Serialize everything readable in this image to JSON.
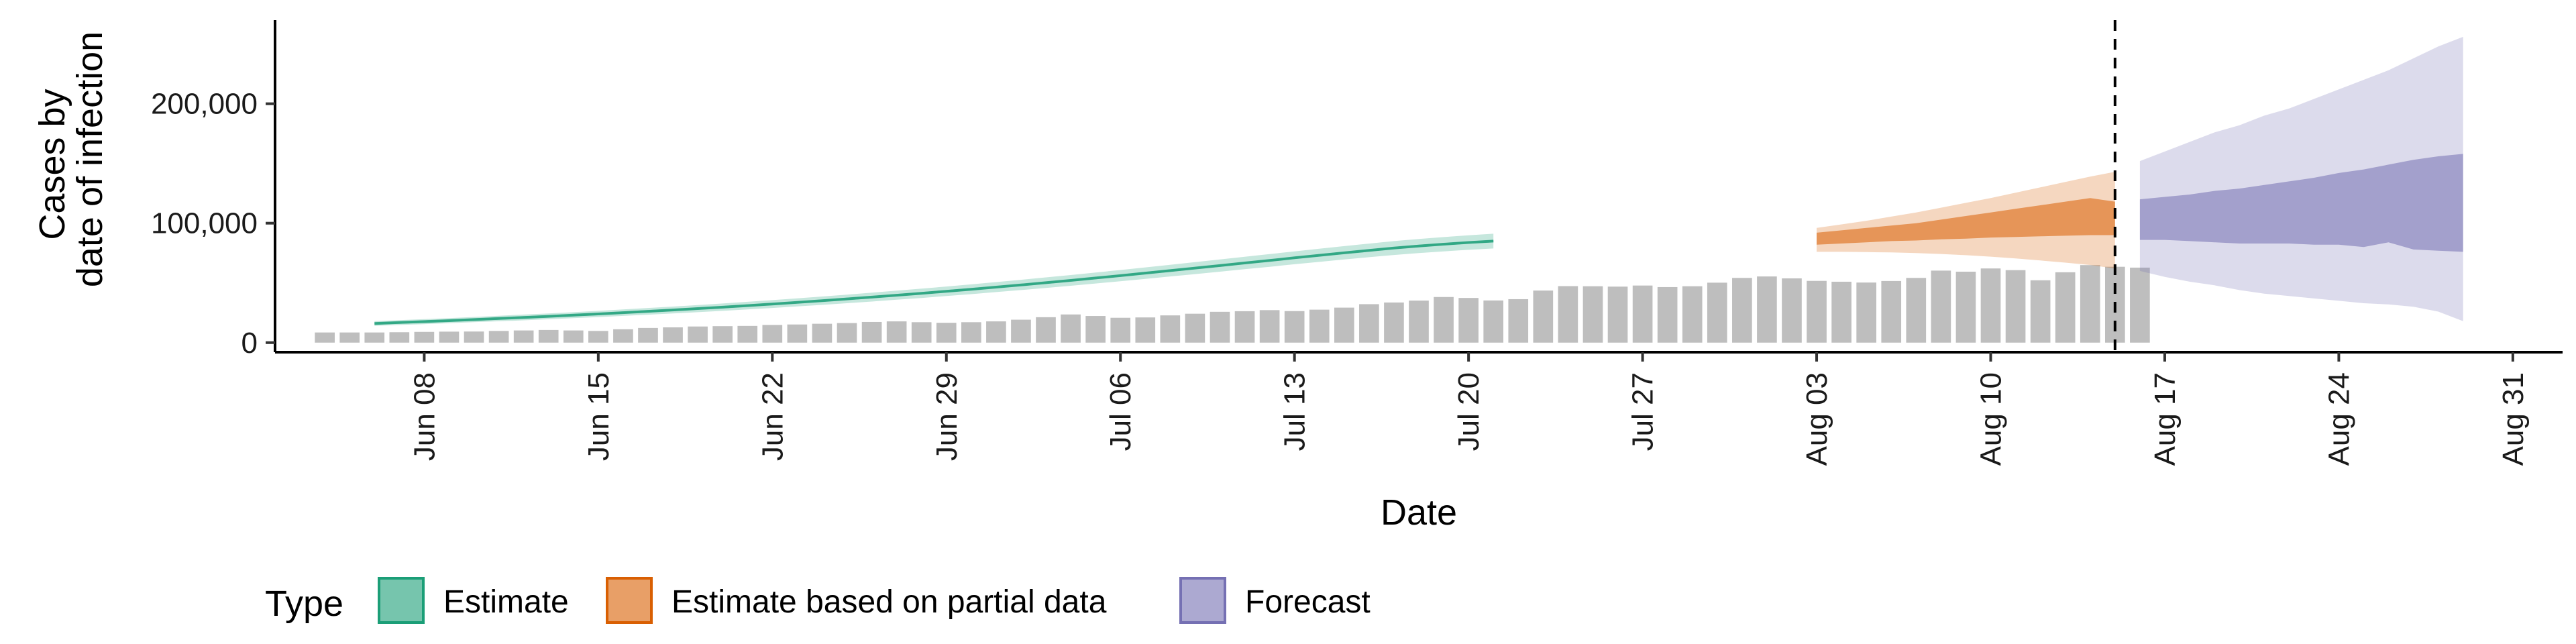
{
  "chart_data": {
    "type": "area",
    "xlabel": "Date",
    "ylabel_lines": [
      "Cases by",
      "date of infection"
    ],
    "x_ticks": [
      "Jun 08",
      "Jun 15",
      "Jun 22",
      "Jun 29",
      "Jul 06",
      "Jul 13",
      "Jul 20",
      "Jul 27",
      "Aug 03",
      "Aug 10",
      "Aug 17",
      "Aug 24",
      "Aug 31"
    ],
    "y_ticks": [
      {
        "value": 0,
        "label": "0"
      },
      {
        "value": 100000,
        "label": "100,000"
      },
      {
        "value": 200000,
        "label": "200,000"
      }
    ],
    "x_start_date": "2020-06-06",
    "ylim": [
      -8000,
      270000
    ],
    "xlim": [
      "2020-06-02",
      "2020-09-02"
    ],
    "forecast_date": "2020-08-15",
    "bar_color": "#bebebe",
    "observed_cases": {
      "start_date": "2020-06-04",
      "values": [
        8500,
        8500,
        8500,
        8700,
        9000,
        9200,
        9300,
        9800,
        10200,
        10600,
        10200,
        9800,
        11200,
        12300,
        12800,
        13500,
        13800,
        14000,
        14800,
        15200,
        15800,
        16400,
        17300,
        17800,
        17100,
        16600,
        17100,
        17800,
        19200,
        21300,
        23600,
        22300,
        20800,
        21100,
        22800,
        24200,
        25800,
        26300,
        27200,
        26400,
        27600,
        29300,
        32200,
        33600,
        35200,
        38200,
        37400,
        35300,
        36400,
        43600,
        47300,
        47200,
        46900,
        47800,
        46500,
        47200,
        50200,
        54200,
        55400,
        53800,
        51700,
        51000,
        50300,
        51600,
        54200,
        60300,
        59400,
        62100,
        60700,
        52200,
        58900,
        64900,
        63500,
        62800
      ]
    },
    "series": [
      {
        "name": "Estimate",
        "color": "#1b9e77",
        "start_date": "2020-06-06",
        "median": [
          16000,
          16800,
          17600,
          18400,
          19300,
          20200,
          21100,
          22000,
          23000,
          24000,
          25100,
          26200,
          27300,
          28500,
          29700,
          31000,
          32300,
          33700,
          35100,
          36600,
          38100,
          39700,
          41300,
          43000,
          44700,
          46500,
          48300,
          50200,
          52100,
          54100,
          56100,
          58200,
          60300,
          62400,
          64500,
          66700,
          68800,
          71000,
          73100,
          75200,
          77200,
          79200,
          80900,
          82400,
          83800,
          85000
        ],
        "inner_lower": [
          15000,
          15800,
          16600,
          17400,
          18300,
          19200,
          20100,
          21000,
          22000,
          23000,
          24100,
          25200,
          26300,
          27500,
          28700,
          30000,
          31300,
          32700,
          34100,
          35600,
          37100,
          38700,
          40300,
          42000,
          43700,
          45500,
          47300,
          49200,
          51100,
          53100,
          55100,
          57200,
          59300,
          61400,
          63500,
          65700,
          67800,
          70000,
          72100,
          74200,
          76200,
          78200,
          79900,
          81400,
          82800,
          84000
        ],
        "inner_upper": [
          17000,
          17800,
          18600,
          19400,
          20300,
          21200,
          22100,
          23000,
          24000,
          25000,
          26100,
          27200,
          28300,
          29500,
          30700,
          32000,
          33300,
          34700,
          36100,
          37600,
          39100,
          40700,
          42300,
          44000,
          45700,
          47500,
          49300,
          51200,
          53100,
          55100,
          57100,
          59200,
          61300,
          63400,
          65500,
          67700,
          69800,
          72000,
          74100,
          76200,
          78200,
          80200,
          81900,
          83400,
          84800,
          86000
        ],
        "outer_lower": [
          14000,
          14800,
          15500,
          16300,
          17100,
          17900,
          18700,
          19600,
          20500,
          21400,
          22400,
          23400,
          24400,
          25500,
          26600,
          27800,
          29000,
          30300,
          31600,
          33000,
          34400,
          35900,
          37400,
          39000,
          40600,
          42300,
          44000,
          45800,
          47600,
          49500,
          51400,
          53400,
          55400,
          57400,
          59400,
          61500,
          63500,
          65600,
          67600,
          69600,
          71500,
          73400,
          75000,
          76400,
          77700,
          78800
        ],
        "outer_upper": [
          18000,
          18800,
          19700,
          20500,
          21500,
          22500,
          23500,
          24400,
          25500,
          26600,
          27800,
          29000,
          30200,
          31500,
          32800,
          34200,
          35600,
          37100,
          38600,
          40200,
          41800,
          43500,
          45200,
          47000,
          48800,
          50700,
          52600,
          54600,
          56600,
          58700,
          60800,
          63000,
          65200,
          67400,
          69600,
          71900,
          74100,
          76400,
          78600,
          80800,
          82900,
          85000,
          86800,
          88400,
          89900,
          91200
        ]
      },
      {
        "name": "Estimate based on partial data",
        "color": "#d95f02",
        "start_date": "2020-08-03",
        "median": [
          86000,
          87500,
          89000,
          90500,
          92000,
          94000,
          96000,
          98500,
          101000,
          103500,
          106000,
          108500,
          111000
        ],
        "inner_lower": [
          82000,
          83000,
          84000,
          85000,
          85500,
          86500,
          87000,
          88000,
          88500,
          89000,
          89500,
          90000,
          90000
        ],
        "inner_upper": [
          92000,
          94000,
          96000,
          98000,
          100000,
          103000,
          106000,
          109000,
          112000,
          115000,
          118000,
          121000,
          118000
        ],
        "outer_lower": [
          76000,
          76000,
          75800,
          75500,
          75000,
          74200,
          73200,
          72000,
          70500,
          68800,
          67000,
          65000,
          62000
        ],
        "outer_upper": [
          96000,
          99000,
          102000,
          105500,
          109000,
          113000,
          117000,
          121000,
          125500,
          130000,
          134500,
          139000,
          143000
        ]
      },
      {
        "name": "Forecast",
        "color": "#7570b3",
        "start_date": "2020-08-16",
        "median": [
          105000,
          106000,
          107000,
          108000,
          109000,
          110000,
          111000,
          112000,
          113000,
          114000,
          115000,
          115000,
          115000,
          116000
        ],
        "inner_lower": [
          86000,
          86000,
          85000,
          84000,
          83000,
          83000,
          83000,
          82000,
          82000,
          80000,
          84000,
          78000,
          77000,
          76000
        ],
        "inner_upper": [
          120000,
          122000,
          124000,
          127000,
          129000,
          132000,
          135000,
          138000,
          142000,
          145000,
          149000,
          153000,
          156000,
          158000
        ],
        "outer_lower": [
          60000,
          55000,
          51000,
          48000,
          44000,
          41000,
          39000,
          37000,
          35000,
          33000,
          32000,
          30000,
          26000,
          18000
        ],
        "outer_upper": [
          152000,
          160000,
          168000,
          176000,
          182000,
          190000,
          196000,
          204000,
          212000,
          220000,
          228000,
          238000,
          248000,
          256000
        ]
      }
    ],
    "legend": {
      "title": "Type",
      "position": "bottom",
      "items": [
        "Estimate",
        "Estimate based on partial data",
        "Forecast"
      ]
    }
  }
}
